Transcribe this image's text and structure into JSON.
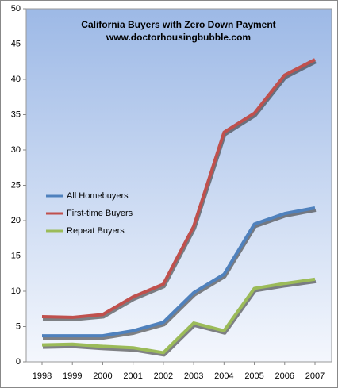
{
  "chart_data": {
    "type": "line",
    "title": "California Buyers with Zero Down Payment",
    "subtitle": "www.doctorhousingbubble.com",
    "categories": [
      "1998",
      "1999",
      "2000",
      "2001",
      "2002",
      "2003",
      "2004",
      "2005",
      "2006",
      "2007"
    ],
    "series": [
      {
        "name": "All Homebuyers",
        "color": "#4f81bd",
        "values": [
          3.7,
          3.7,
          3.7,
          4.4,
          5.6,
          9.8,
          12.4,
          19.5,
          21.0,
          21.8
        ]
      },
      {
        "name": "First-time Buyers",
        "color": "#c0504d",
        "values": [
          6.4,
          6.3,
          6.7,
          9.2,
          11.0,
          19.2,
          32.5,
          35.2,
          40.6,
          42.8
        ]
      },
      {
        "name": "Repeat Buyers",
        "color": "#9bbb59",
        "values": [
          2.4,
          2.5,
          2.2,
          2.0,
          1.3,
          5.5,
          4.4,
          10.4,
          11.1,
          11.7
        ]
      }
    ],
    "ylim": [
      0,
      50
    ],
    "yticks": [
      0,
      5,
      10,
      15,
      20,
      25,
      30,
      35,
      40,
      45,
      50
    ],
    "grid": false,
    "legend": "left"
  }
}
